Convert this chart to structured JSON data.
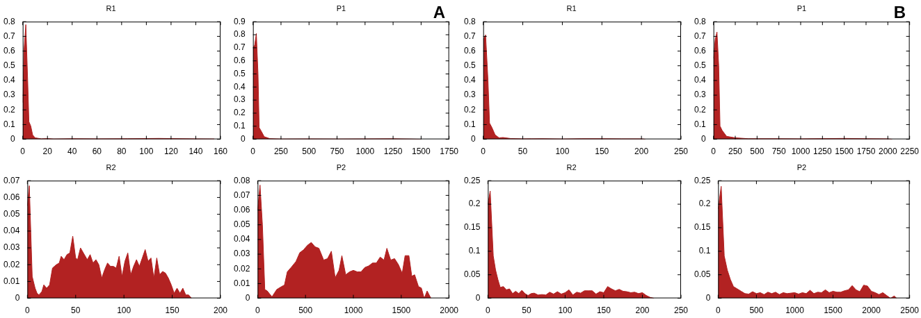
{
  "chart_data": [
    {
      "type": "area",
      "title": "R1",
      "color": "#b22222",
      "xlim": [
        0,
        160
      ],
      "xticks": [
        0,
        20,
        40,
        60,
        80,
        100,
        120,
        140,
        160
      ],
      "ylim": [
        0,
        0.8
      ],
      "yticks": [
        0,
        0.1,
        0.2,
        0.3,
        0.4,
        0.5,
        0.6,
        0.7,
        0.8
      ],
      "x": [
        0,
        1,
        2.5,
        4,
        5,
        6.5,
        8,
        10,
        15,
        20,
        25,
        40,
        60,
        85,
        110,
        120,
        140,
        155
      ],
      "values": [
        0.25,
        0.6,
        0.78,
        0.4,
        0.12,
        0.09,
        0.03,
        0.01,
        0.003,
        0.005,
        0.002,
        0.004,
        0.003,
        0.004,
        0.006,
        0.005,
        0.003,
        0.002
      ]
    },
    {
      "type": "area",
      "title": "P1",
      "color": "#b22222",
      "annotations": [
        "A"
      ],
      "xlim": [
        0,
        1750
      ],
      "xticks": [
        0,
        250,
        500,
        750,
        1000,
        1250,
        1500,
        1750
      ],
      "ylim": [
        0,
        0.9
      ],
      "yticks": [
        0,
        0.1,
        0.2,
        0.3,
        0.4,
        0.5,
        0.6,
        0.7,
        0.8,
        0.9
      ],
      "x": [
        0,
        15,
        30,
        45,
        55,
        75,
        100,
        150,
        250,
        500,
        750,
        1000,
        1250,
        1400,
        1500
      ],
      "values": [
        0.7,
        0.72,
        0.81,
        0.5,
        0.09,
        0.06,
        0.02,
        0.005,
        0.002,
        0.003,
        0.002,
        0.003,
        0.004,
        0.002,
        0
      ]
    },
    {
      "type": "area",
      "title": "R1",
      "color": "#b22222",
      "xlim": [
        0,
        250
      ],
      "xticks": [
        0,
        50,
        100,
        150,
        200,
        250
      ],
      "ylim": [
        0,
        0.8
      ],
      "yticks": [
        0,
        0.1,
        0.2,
        0.3,
        0.4,
        0.5,
        0.6,
        0.7,
        0.8
      ],
      "x": [
        0,
        3,
        6,
        8,
        11,
        15,
        20,
        25,
        35,
        50,
        75,
        100,
        125,
        150,
        175,
        200,
        205
      ],
      "values": [
        0.68,
        0.71,
        0.4,
        0.11,
        0.08,
        0.03,
        0.01,
        0.012,
        0.005,
        0.003,
        0.004,
        0.002,
        0.004,
        0.004,
        0.003,
        0.003,
        0
      ]
    },
    {
      "type": "area",
      "title": "P1",
      "color": "#b22222",
      "annotations": [
        "B"
      ],
      "xlim": [
        0,
        2250
      ],
      "xticks": [
        0,
        250,
        500,
        750,
        1000,
        1250,
        1500,
        1750,
        2000,
        2250
      ],
      "ylim": [
        0,
        0.8
      ],
      "yticks": [
        0,
        0.1,
        0.2,
        0.3,
        0.4,
        0.5,
        0.6,
        0.7,
        0.8
      ],
      "x": [
        0,
        20,
        40,
        60,
        75,
        100,
        150,
        250,
        400,
        750,
        1000,
        1500,
        1750,
        2000,
        2050
      ],
      "values": [
        0.55,
        0.68,
        0.73,
        0.5,
        0.09,
        0.06,
        0.02,
        0.01,
        0.004,
        0.004,
        0.003,
        0.006,
        0.004,
        0.003,
        0
      ]
    },
    {
      "type": "area",
      "title": "R2",
      "color": "#b22222",
      "xlim": [
        0,
        200
      ],
      "xticks": [
        0,
        50,
        100,
        150,
        200
      ],
      "ylim": [
        0,
        0.07
      ],
      "yticks": [
        0,
        0.01,
        0.02,
        0.03,
        0.04,
        0.05,
        0.06,
        0.07
      ],
      "x": [
        0,
        2,
        5,
        8,
        10,
        12,
        15,
        17,
        20,
        23,
        26,
        30,
        33,
        35,
        38,
        41,
        44,
        47,
        50,
        52,
        55,
        58,
        62,
        65,
        68,
        71,
        74,
        77,
        80,
        83,
        86,
        89,
        92,
        95,
        98,
        101,
        104,
        107,
        110,
        113,
        116,
        119,
        122,
        125,
        128,
        131,
        134,
        137,
        140,
        143,
        146,
        149,
        152,
        155,
        158,
        161,
        164,
        167,
        170
      ],
      "values": [
        0.055,
        0.067,
        0.013,
        0.006,
        0.003,
        0.002,
        0.004,
        0.008,
        0.006,
        0.008,
        0.018,
        0.02,
        0.021,
        0.025,
        0.023,
        0.026,
        0.027,
        0.037,
        0.024,
        0.023,
        0.03,
        0.027,
        0.023,
        0.026,
        0.021,
        0.023,
        0.02,
        0.012,
        0.017,
        0.021,
        0.019,
        0.019,
        0.018,
        0.025,
        0.013,
        0.022,
        0.027,
        0.014,
        0.019,
        0.023,
        0.019,
        0.024,
        0.029,
        0.022,
        0.024,
        0.012,
        0.024,
        0.014,
        0.016,
        0.015,
        0.012,
        0.008,
        0.003,
        0.006,
        0.003,
        0.006,
        0.002,
        0.002,
        0
      ]
    },
    {
      "type": "area",
      "title": "P2",
      "color": "#b22222",
      "xlim": [
        0,
        2000
      ],
      "xticks": [
        0,
        500,
        1000,
        1500,
        2000
      ],
      "ylim": [
        0,
        0.08
      ],
      "yticks": [
        0,
        0.01,
        0.02,
        0.03,
        0.04,
        0.05,
        0.06,
        0.07,
        0.08
      ],
      "x": [
        0,
        25,
        50,
        75,
        100,
        125,
        150,
        200,
        250,
        280,
        310,
        350,
        400,
        440,
        480,
        520,
        560,
        600,
        640,
        690,
        730,
        770,
        810,
        850,
        880,
        920,
        960,
        1000,
        1040,
        1080,
        1120,
        1160,
        1200,
        1240,
        1280,
        1320,
        1350,
        1390,
        1430,
        1470,
        1510,
        1540,
        1580,
        1610,
        1640,
        1680,
        1710,
        1740,
        1770,
        1810
      ],
      "values": [
        0.06,
        0.077,
        0.05,
        0.006,
        0.005,
        0.003,
        0.001,
        0.006,
        0.008,
        0.009,
        0.018,
        0.021,
        0.025,
        0.031,
        0.033,
        0.036,
        0.038,
        0.035,
        0.034,
        0.026,
        0.027,
        0.032,
        0.014,
        0.019,
        0.029,
        0.016,
        0.018,
        0.019,
        0.018,
        0.018,
        0.021,
        0.022,
        0.024,
        0.024,
        0.028,
        0.026,
        0.034,
        0.026,
        0.027,
        0.023,
        0.017,
        0.029,
        0.029,
        0.015,
        0.016,
        0.008,
        0.007,
        0,
        0.005,
        0
      ]
    },
    {
      "type": "area",
      "title": "R2",
      "color": "#b22222",
      "xlim": [
        0,
        250
      ],
      "xticks": [
        0,
        50,
        100,
        150,
        200,
        250
      ],
      "ylim": [
        0,
        0.25
      ],
      "yticks": [
        0,
        0.05,
        0.1,
        0.15,
        0.2,
        0.25
      ],
      "x": [
        0,
        3,
        7,
        10,
        13,
        16,
        20,
        24,
        28,
        32,
        36,
        40,
        44,
        48,
        52,
        56,
        60,
        65,
        70,
        75,
        80,
        85,
        90,
        95,
        100,
        105,
        110,
        115,
        120,
        125,
        130,
        135,
        140,
        145,
        150,
        155,
        160,
        165,
        170,
        175,
        180,
        185,
        190,
        195,
        200,
        205,
        210,
        215
      ],
      "values": [
        0.2,
        0.228,
        0.09,
        0.06,
        0.04,
        0.023,
        0.025,
        0.018,
        0.02,
        0.01,
        0.015,
        0.01,
        0.017,
        0.01,
        0.006,
        0.01,
        0.011,
        0.007,
        0.008,
        0.007,
        0.013,
        0.009,
        0.014,
        0.009,
        0.012,
        0.018,
        0.007,
        0.013,
        0.011,
        0.016,
        0.016,
        0.016,
        0.009,
        0.014,
        0.012,
        0.025,
        0.02,
        0.016,
        0.019,
        0.015,
        0.014,
        0.012,
        0.013,
        0.01,
        0.012,
        0.006,
        0.002,
        0
      ]
    },
    {
      "type": "area",
      "title": "P2",
      "color": "#b22222",
      "xlim": [
        0,
        2500
      ],
      "xticks": [
        0,
        500,
        1000,
        1500,
        2000,
        2500
      ],
      "ylim": [
        0,
        0.25
      ],
      "yticks": [
        0,
        0.05,
        0.1,
        0.15,
        0.2,
        0.25
      ],
      "x": [
        0,
        40,
        80,
        120,
        160,
        200,
        300,
        350,
        400,
        450,
        500,
        550,
        600,
        650,
        700,
        750,
        800,
        850,
        900,
        1000,
        1050,
        1100,
        1150,
        1200,
        1250,
        1300,
        1350,
        1400,
        1450,
        1500,
        1550,
        1600,
        1650,
        1700,
        1750,
        1800,
        1850,
        1900,
        1950,
        2000,
        2050,
        2100,
        2150,
        2200,
        2250,
        2300,
        2330
      ],
      "values": [
        0.19,
        0.238,
        0.09,
        0.06,
        0.04,
        0.025,
        0.015,
        0.01,
        0.009,
        0.014,
        0.01,
        0.012,
        0.008,
        0.013,
        0.01,
        0.013,
        0.008,
        0.012,
        0.01,
        0.012,
        0.009,
        0.012,
        0.01,
        0.017,
        0.01,
        0.013,
        0.012,
        0.018,
        0.012,
        0.015,
        0.013,
        0.013,
        0.016,
        0.018,
        0.027,
        0.018,
        0.014,
        0.028,
        0.026,
        0.015,
        0.012,
        0.008,
        0.012,
        0.006,
        0,
        0.005,
        0
      ]
    }
  ]
}
